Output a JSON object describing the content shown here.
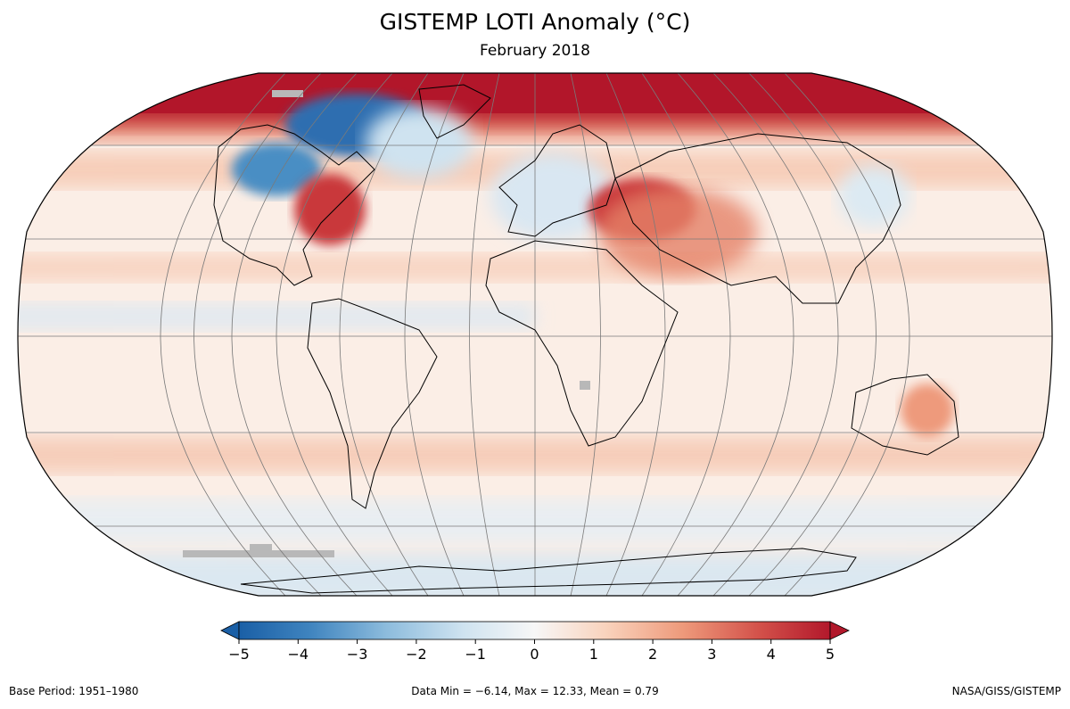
{
  "header": {
    "title": "GISTEMP LOTI Anomaly (°C)",
    "subtitle": "February 2018"
  },
  "map": {
    "projection": "Robinson",
    "variable": "LOTI temperature anomaly",
    "units": "°C",
    "no_data_color": "#b8b8b8",
    "coastline_color": "#000000",
    "graticule_color": "#7a7a7a"
  },
  "colorbar": {
    "min": -5,
    "max": 5,
    "tick_labels": [
      "−5",
      "−4",
      "−3",
      "−2",
      "−1",
      "0",
      "1",
      "2",
      "3",
      "4",
      "5"
    ],
    "colors": [
      "#1a5fa6",
      "#4a8ec4",
      "#9fc7e3",
      "#dceaf3",
      "#f7f7f7",
      "#f9dcc8",
      "#f1a485",
      "#d85d4a",
      "#b2182b"
    ],
    "extend": "both"
  },
  "footer": {
    "base_period": "Base Period: 1951–1980",
    "stats": "Data Min = −6.14, Max = 12.33, Mean = 0.79",
    "credit": "NASA/GISS/GISTEMP"
  }
}
